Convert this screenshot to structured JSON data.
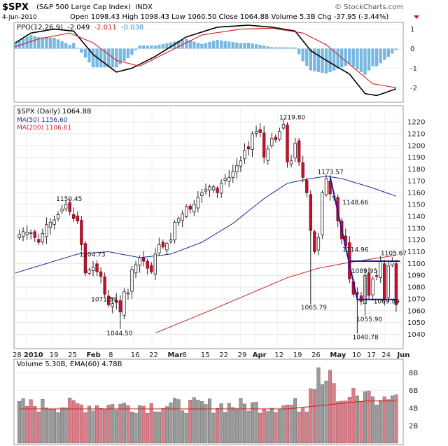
{
  "header": {
    "symbol": "$SPX",
    "name": "(S&P 500 Large Cap Index)",
    "exchange": "INDX",
    "brand": "© StockCharts.com",
    "date": "4-Jun-2010",
    "quote_line": "Open 1098.43  High 1098.43  Low 1060.50  Close 1064.88  Volume 5.3B  Chg -37.95 (-3.44%)"
  },
  "ppo_panel": {
    "label": "PPO(12,26,9)",
    "values": [
      "-2.049",
      "-2.011",
      "-0.038"
    ],
    "colors": {
      "ppo": "#000000",
      "signal": "#d32222",
      "hist": "#4aa0d8"
    },
    "ticks": [
      "1",
      "0",
      "-1",
      "-2"
    ],
    "ylim": [
      -2.6,
      1.2
    ]
  },
  "price_panel": {
    "title": "$SPX (Daily) 1064.88",
    "ma50_label": "MA(50) 1156.60",
    "ma200_label": "MA(200) 1106.61",
    "ticks": [
      "1220",
      "1210",
      "1200",
      "1190",
      "1180",
      "1170",
      "1160",
      "1150",
      "1140",
      "1130",
      "1120",
      "1110",
      "1100",
      "1090",
      "1080",
      "1070",
      "1060",
      "1050",
      "1040"
    ],
    "ylim": [
      1032,
      1226
    ],
    "annotations": [
      "1219.80",
      "1150.45",
      "1104.73",
      "1071.59",
      "1044.50",
      "1173.57",
      "1148.66",
      "1114.96",
      "1089.95",
      "1105.67",
      "1065.79",
      "1069.89",
      "1055.90",
      "1040.78"
    ],
    "colors": {
      "up": "#ffffff",
      "down": "#c8102e",
      "ma50": "#1a2ea0",
      "ma200": "#d32222",
      "trend": "#1a1aa0"
    }
  },
  "volume_panel": {
    "label": "Volume 5.30B, EMA(60) 4.78B",
    "ticks": [
      "8B",
      "6B",
      "4B",
      "2B"
    ],
    "ylim": [
      0,
      9
    ],
    "colors": {
      "up": "#9a9a9a",
      "down": "#e07a86",
      "ema": "#d32222"
    }
  },
  "x_axis": {
    "labels": [
      "28",
      "2010",
      "19",
      "25",
      "Feb",
      "8",
      "16",
      "22",
      "Mar",
      "8",
      "15",
      "22",
      "29",
      "Apr",
      "12",
      "19",
      "26",
      "May",
      "10",
      "17",
      "24",
      "Jun"
    ]
  },
  "chart_data": {
    "type": "candlestick",
    "title": "$SPX (Daily) 1064.88",
    "anchors_close": [
      [
        0,
        1122
      ],
      [
        2,
        1127
      ],
      [
        4,
        1126
      ],
      [
        6,
        1118
      ],
      [
        8,
        1133
      ],
      [
        10,
        1137
      ],
      [
        12,
        1146
      ],
      [
        13,
        1150
      ],
      [
        14,
        1144
      ],
      [
        15,
        1138
      ],
      [
        16,
        1136
      ],
      [
        17,
        1116
      ],
      [
        18,
        1092
      ],
      [
        20,
        1097
      ],
      [
        22,
        1089
      ],
      [
        23,
        1074
      ],
      [
        24,
        1065
      ],
      [
        26,
        1067
      ],
      [
        27,
        1059
      ],
      [
        28,
        1076
      ],
      [
        29,
        1075
      ],
      [
        30,
        1095
      ],
      [
        31,
        1099
      ],
      [
        32,
        1105
      ],
      [
        33,
        1102
      ],
      [
        34,
        1096
      ],
      [
        35,
        1093
      ],
      [
        36,
        1108
      ],
      [
        37,
        1116
      ],
      [
        38,
        1114
      ],
      [
        39,
        1117
      ],
      [
        40,
        1120
      ],
      [
        41,
        1135
      ],
      [
        42,
        1138
      ],
      [
        43,
        1142
      ],
      [
        44,
        1148
      ],
      [
        45,
        1146
      ],
      [
        46,
        1150
      ],
      [
        47,
        1156
      ],
      [
        48,
        1160
      ],
      [
        49,
        1163
      ],
      [
        50,
        1165
      ],
      [
        51,
        1165
      ],
      [
        52,
        1160
      ],
      [
        53,
        1168
      ],
      [
        54,
        1172
      ],
      [
        55,
        1173
      ],
      [
        56,
        1178
      ],
      [
        57,
        1183
      ],
      [
        58,
        1187
      ],
      [
        59,
        1196
      ],
      [
        60,
        1197
      ],
      [
        61,
        1210
      ],
      [
        62,
        1212
      ],
      [
        63,
        1211
      ],
      [
        64,
        1190
      ],
      [
        65,
        1197
      ],
      [
        66,
        1206
      ],
      [
        67,
        1205
      ],
      [
        68,
        1212
      ],
      [
        69,
        1218
      ],
      [
        70,
        1186
      ],
      [
        71,
        1187
      ],
      [
        72,
        1202
      ],
      [
        73,
        1186
      ],
      [
        74,
        1173
      ],
      [
        75,
        1160
      ],
      [
        76,
        1128
      ],
      [
        77,
        1110
      ],
      [
        78,
        1122
      ],
      [
        79,
        1160
      ],
      [
        80,
        1172
      ],
      [
        81,
        1159
      ],
      [
        82,
        1157
      ],
      [
        83,
        1136
      ],
      [
        84,
        1121
      ],
      [
        85,
        1115
      ],
      [
        86,
        1087
      ],
      [
        87,
        1074
      ],
      [
        88,
        1074
      ],
      [
        89,
        1068
      ],
      [
        90,
        1090
      ],
      [
        91,
        1073
      ],
      [
        92,
        1087
      ],
      [
        93,
        1089
      ],
      [
        94,
        1102
      ],
      [
        95,
        1070
      ],
      [
        96,
        1098
      ],
      [
        97,
        1102
      ],
      [
        98,
        1065
      ]
    ],
    "ma50": [
      [
        0,
        1092
      ],
      [
        8,
        1100
      ],
      [
        16,
        1108
      ],
      [
        24,
        1110
      ],
      [
        32,
        1105
      ],
      [
        40,
        1108
      ],
      [
        48,
        1118
      ],
      [
        56,
        1134
      ],
      [
        64,
        1155
      ],
      [
        70,
        1168
      ],
      [
        76,
        1172
      ],
      [
        80,
        1174
      ],
      [
        84,
        1172
      ],
      [
        88,
        1168
      ],
      [
        92,
        1164
      ],
      [
        98,
        1157
      ]
    ],
    "ma200": [
      [
        0,
        1000
      ],
      [
        30,
        1033
      ],
      [
        50,
        1060
      ],
      [
        60,
        1074
      ],
      [
        70,
        1088
      ],
      [
        78,
        1096
      ],
      [
        86,
        1101
      ],
      [
        92,
        1104
      ],
      [
        98,
        1107
      ]
    ],
    "trend_lines": [
      {
        "from": [
          81,
          1173.57
        ],
        "to": [
          88,
          1069.5
        ]
      },
      {
        "from": [
          88,
          1069.5
        ],
        "to": [
          98,
          1069.5
        ]
      },
      {
        "from": [
          86,
          1102
        ],
        "to": [
          99,
          1102
        ]
      }
    ]
  }
}
